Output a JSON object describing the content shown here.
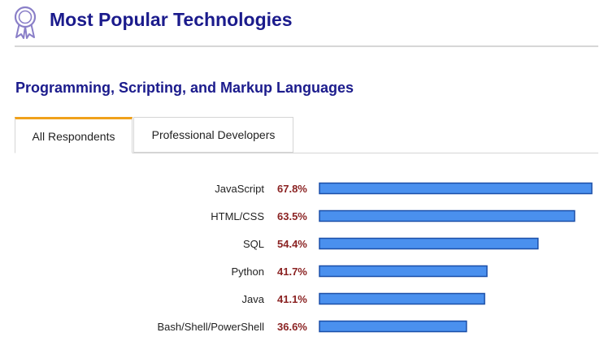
{
  "header": {
    "title": "Most Popular Technologies",
    "icon": "ribbon-badge-icon"
  },
  "section": {
    "title": "Programming, Scripting, and Markup Languages"
  },
  "tabs": [
    {
      "label": "All Respondents",
      "active": true
    },
    {
      "label": "Professional Developers",
      "active": false
    }
  ],
  "colors": {
    "title": "#1b1b8c",
    "bar": "#4a90ee",
    "bar_border": "#1b4fa8",
    "value": "#8b2323",
    "tab_accent": "#f0a11b"
  },
  "chart_data": {
    "type": "bar",
    "orientation": "horizontal",
    "categories": [
      "JavaScript",
      "HTML/CSS",
      "SQL",
      "Python",
      "Java",
      "Bash/Shell/PowerShell"
    ],
    "values": [
      67.8,
      63.5,
      54.4,
      41.7,
      41.1,
      36.6
    ],
    "value_labels": [
      "67.8%",
      "63.5%",
      "54.4%",
      "41.7%",
      "41.1%",
      "36.6%"
    ],
    "xlim": [
      0,
      67.8
    ],
    "grid": false,
    "legend": "none"
  }
}
